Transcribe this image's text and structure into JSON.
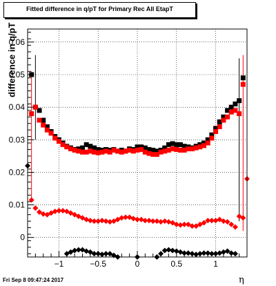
{
  "chart_data": {
    "type": "scatter",
    "title": "Fitted difference in q/pT for Primary Rec All EtapT",
    "xlabel": "η",
    "ylabel": "difference in q/pT",
    "xlim": [
      -1.4,
      1.4
    ],
    "ylim": [
      -0.006,
      0.064
    ],
    "grid": true,
    "x_ticks": [
      -1,
      -0.5,
      0,
      0.5,
      1
    ],
    "x_tick_labels": [
      "−1",
      "−0.5",
      "0",
      "0.5",
      "1"
    ],
    "y_ticks": [
      0,
      0.01,
      0.02,
      0.03,
      0.04,
      0.05,
      0.06
    ],
    "y_tick_labels": [
      "0",
      "0.01",
      "0.02",
      "0.03",
      "0.04",
      "0.05",
      "0.06"
    ],
    "series": [
      {
        "color": "#000000",
        "marker": "square",
        "x": [
          -1.35,
          -1.3,
          -1.25,
          -1.2,
          -1.15,
          -1.1,
          -1.05,
          -1.0,
          -0.95,
          -0.9,
          -0.85,
          -0.8,
          -0.75,
          -0.7,
          -0.65,
          -0.6,
          -0.55,
          -0.5,
          -0.45,
          -0.4,
          -0.35,
          -0.3,
          -0.25,
          -0.2,
          -0.15,
          -0.1,
          -0.05,
          0.0,
          0.05,
          0.1,
          0.15,
          0.2,
          0.25,
          0.3,
          0.35,
          0.4,
          0.45,
          0.5,
          0.55,
          0.6,
          0.65,
          0.7,
          0.75,
          0.8,
          0.85,
          0.9,
          0.95,
          1.0,
          1.05,
          1.1,
          1.15,
          1.2,
          1.25,
          1.3,
          1.35
        ],
        "y": [
          0.05,
          0.04,
          0.039,
          0.036,
          0.034,
          0.0325,
          0.031,
          0.03,
          0.029,
          0.028,
          0.0275,
          0.027,
          0.0272,
          0.0275,
          0.0285,
          0.028,
          0.0275,
          0.027,
          0.0268,
          0.027,
          0.0268,
          0.027,
          0.0265,
          0.0268,
          0.0265,
          0.0272,
          0.027,
          0.0278,
          0.0278,
          0.0275,
          0.027,
          0.0268,
          0.0265,
          0.0268,
          0.0275,
          0.0285,
          0.0288,
          0.0285,
          0.0285,
          0.028,
          0.0278,
          0.0275,
          0.028,
          0.0285,
          0.029,
          0.03,
          0.0315,
          0.0335,
          0.0355,
          0.037,
          0.039,
          0.04,
          0.041,
          0.042,
          0.049
        ]
      },
      {
        "color": "#ff0000",
        "marker": "square",
        "x": [
          -1.35,
          -1.3,
          -1.25,
          -1.2,
          -1.15,
          -1.1,
          -1.05,
          -1.0,
          -0.95,
          -0.9,
          -0.85,
          -0.8,
          -0.75,
          -0.7,
          -0.65,
          -0.6,
          -0.55,
          -0.5,
          -0.45,
          -0.4,
          -0.35,
          -0.3,
          -0.25,
          -0.2,
          -0.15,
          -0.1,
          -0.05,
          0.0,
          0.05,
          0.1,
          0.15,
          0.2,
          0.25,
          0.3,
          0.35,
          0.4,
          0.45,
          0.5,
          0.55,
          0.6,
          0.65,
          0.7,
          0.75,
          0.8,
          0.85,
          0.9,
          0.95,
          1.0,
          1.05,
          1.1,
          1.15,
          1.2,
          1.25,
          1.3,
          1.35
        ],
        "y": [
          0.038,
          0.04,
          0.036,
          0.0345,
          0.033,
          0.032,
          0.0305,
          0.0295,
          0.0285,
          0.0278,
          0.0272,
          0.0268,
          0.0265,
          0.0262,
          0.0262,
          0.0265,
          0.0262,
          0.026,
          0.0262,
          0.0265,
          0.0262,
          0.0268,
          0.0265,
          0.0262,
          0.0265,
          0.0268,
          0.0265,
          0.0268,
          0.027,
          0.0262,
          0.0258,
          0.0255,
          0.0255,
          0.0262,
          0.0265,
          0.0268,
          0.0272,
          0.027,
          0.0268,
          0.0268,
          0.0272,
          0.0272,
          0.0275,
          0.0278,
          0.0282,
          0.029,
          0.0305,
          0.0325,
          0.034,
          0.036,
          0.037,
          0.0385,
          0.039,
          0.038,
          0.047
        ]
      },
      {
        "color": "#ff0000",
        "marker": "circle",
        "x": [
          -1.35,
          -1.3,
          -1.25,
          -1.2,
          -1.15,
          -1.1,
          -1.05,
          -1.0,
          -0.95,
          -0.9,
          -0.85,
          -0.8,
          -0.75,
          -0.7,
          -0.65,
          -0.6,
          -0.55,
          -0.5,
          -0.45,
          -0.4,
          -0.35,
          -0.3,
          -0.25,
          -0.2,
          -0.15,
          -0.1,
          -0.05,
          0.0,
          0.05,
          0.1,
          0.15,
          0.2,
          0.25,
          0.3,
          0.35,
          0.4,
          0.45,
          0.5,
          0.55,
          0.6,
          0.65,
          0.7,
          0.75,
          0.8,
          0.85,
          0.9,
          0.95,
          1.0,
          1.05,
          1.1,
          1.15,
          1.2,
          1.25,
          1.3,
          1.35,
          1.4
        ],
        "y": [
          0.0115,
          0.009,
          0.0078,
          0.0072,
          0.007,
          0.0075,
          0.008,
          0.0082,
          0.0082,
          0.008,
          0.0075,
          0.007,
          0.0065,
          0.006,
          0.0055,
          0.0052,
          0.005,
          0.005,
          0.0052,
          0.005,
          0.0048,
          0.005,
          0.0055,
          0.006,
          0.0062,
          0.0062,
          0.0058,
          0.0055,
          0.0055,
          0.0052,
          0.0052,
          0.005,
          0.005,
          0.0048,
          0.005,
          0.0048,
          0.0045,
          0.004,
          0.0038,
          0.004,
          0.004,
          0.0035,
          0.0035,
          0.004,
          0.0045,
          0.0052,
          0.0052,
          0.0052,
          0.0055,
          0.005,
          0.0048,
          0.004,
          0.0032,
          0.0065,
          0.006,
          0.018
        ]
      },
      {
        "color": "#000000",
        "marker": "circle",
        "x": [
          -1.4,
          -0.9,
          -0.85,
          -0.8,
          -0.75,
          -0.7,
          -0.65,
          -0.6,
          -0.55,
          -0.5,
          -0.45,
          -0.4,
          -0.35,
          -0.3,
          -0.25,
          0.0,
          0.25,
          0.3,
          0.35,
          0.4,
          0.45,
          0.5,
          0.55,
          0.6,
          0.65,
          0.7,
          0.75,
          0.8,
          0.85,
          0.9,
          0.95,
          1.0,
          1.05,
          1.1,
          1.15,
          1.2,
          1.25
        ],
        "y": [
          0.022,
          -0.005,
          -0.0045,
          -0.004,
          -0.0038,
          -0.0038,
          -0.0042,
          -0.0045,
          -0.005,
          -0.005,
          -0.0052,
          -0.005,
          -0.005,
          -0.0055,
          -0.006,
          -0.006,
          -0.006,
          -0.005,
          -0.004,
          -0.0038,
          -0.004,
          -0.0042,
          -0.0045,
          -0.0048,
          -0.0048,
          -0.005,
          -0.0052,
          -0.005,
          -0.0048,
          -0.0048,
          -0.005,
          -0.005,
          -0.0048,
          -0.0045,
          -0.0042,
          -0.0048,
          -0.005
        ]
      }
    ]
  },
  "footer_text": "Fri Sep  8 09:47:24 2017"
}
